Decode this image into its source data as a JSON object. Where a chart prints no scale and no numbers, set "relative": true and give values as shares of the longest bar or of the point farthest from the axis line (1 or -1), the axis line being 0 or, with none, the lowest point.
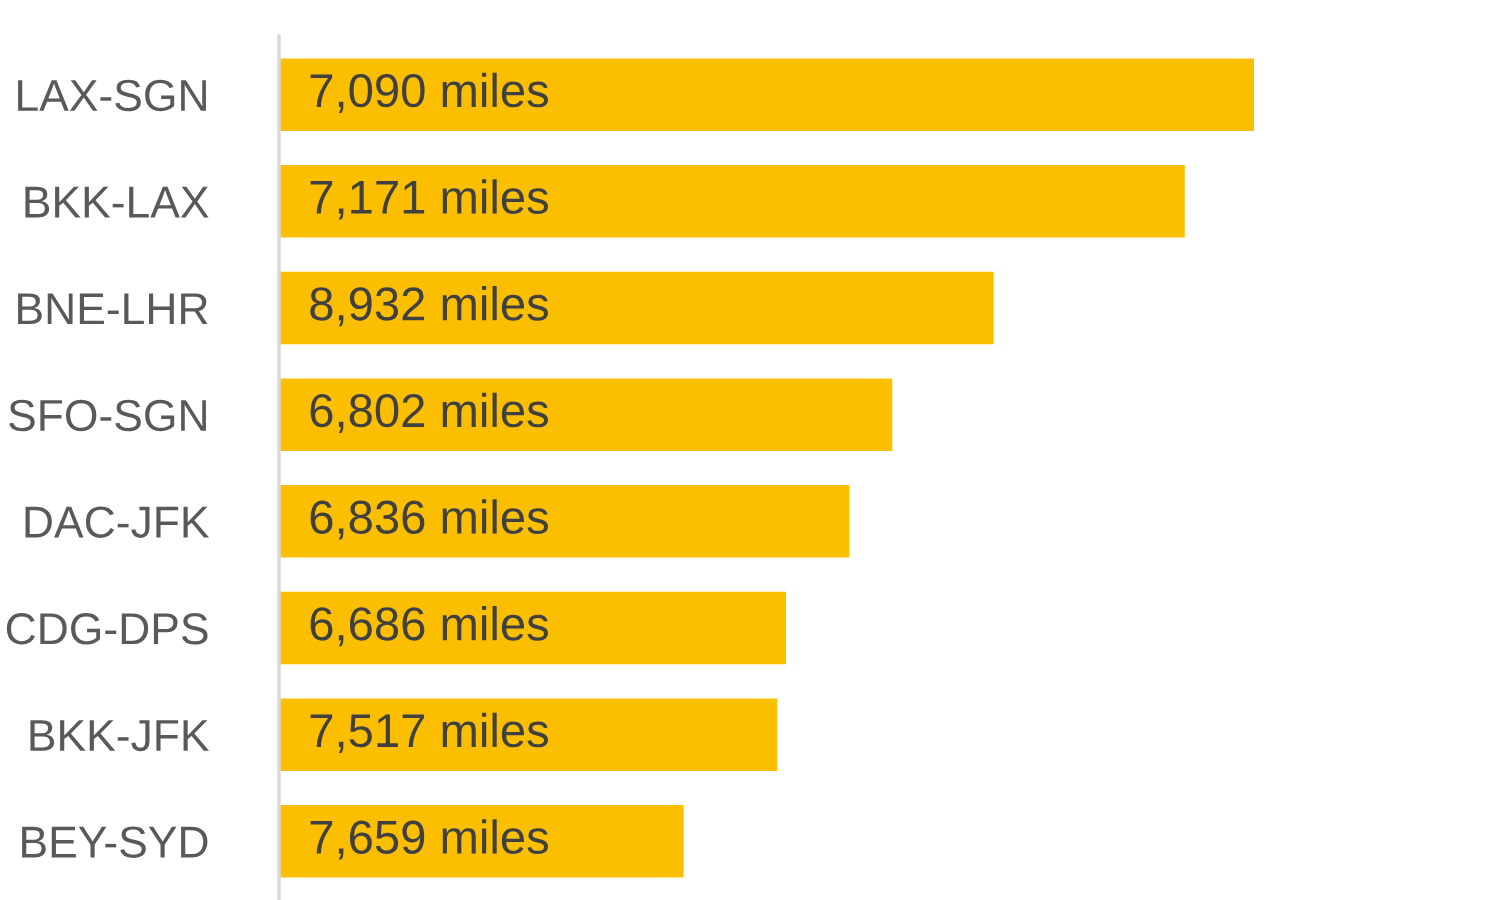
{
  "chart_data": {
    "type": "bar",
    "orientation": "horizontal",
    "relative": true,
    "categories": [
      "LAX-SGN",
      "BKK-LAX",
      "BNE-LHR",
      "SFO-SGN",
      "DAC-JFK",
      "CDG-DPS",
      "BKK-JFK",
      "BEY-SYD"
    ],
    "values": [
      1,
      0.929,
      0.733,
      0.629,
      0.585,
      0.52,
      0.511,
      0.415
    ],
    "annotations": [
      "7,090 miles",
      "7,171 miles",
      "8,932 miles",
      "6,802 miles",
      "6,836 miles",
      "6,686 miles",
      "7,517 miles",
      "7,659 miles"
    ],
    "color": "#fbbf00",
    "grid": false,
    "legend": false
  }
}
